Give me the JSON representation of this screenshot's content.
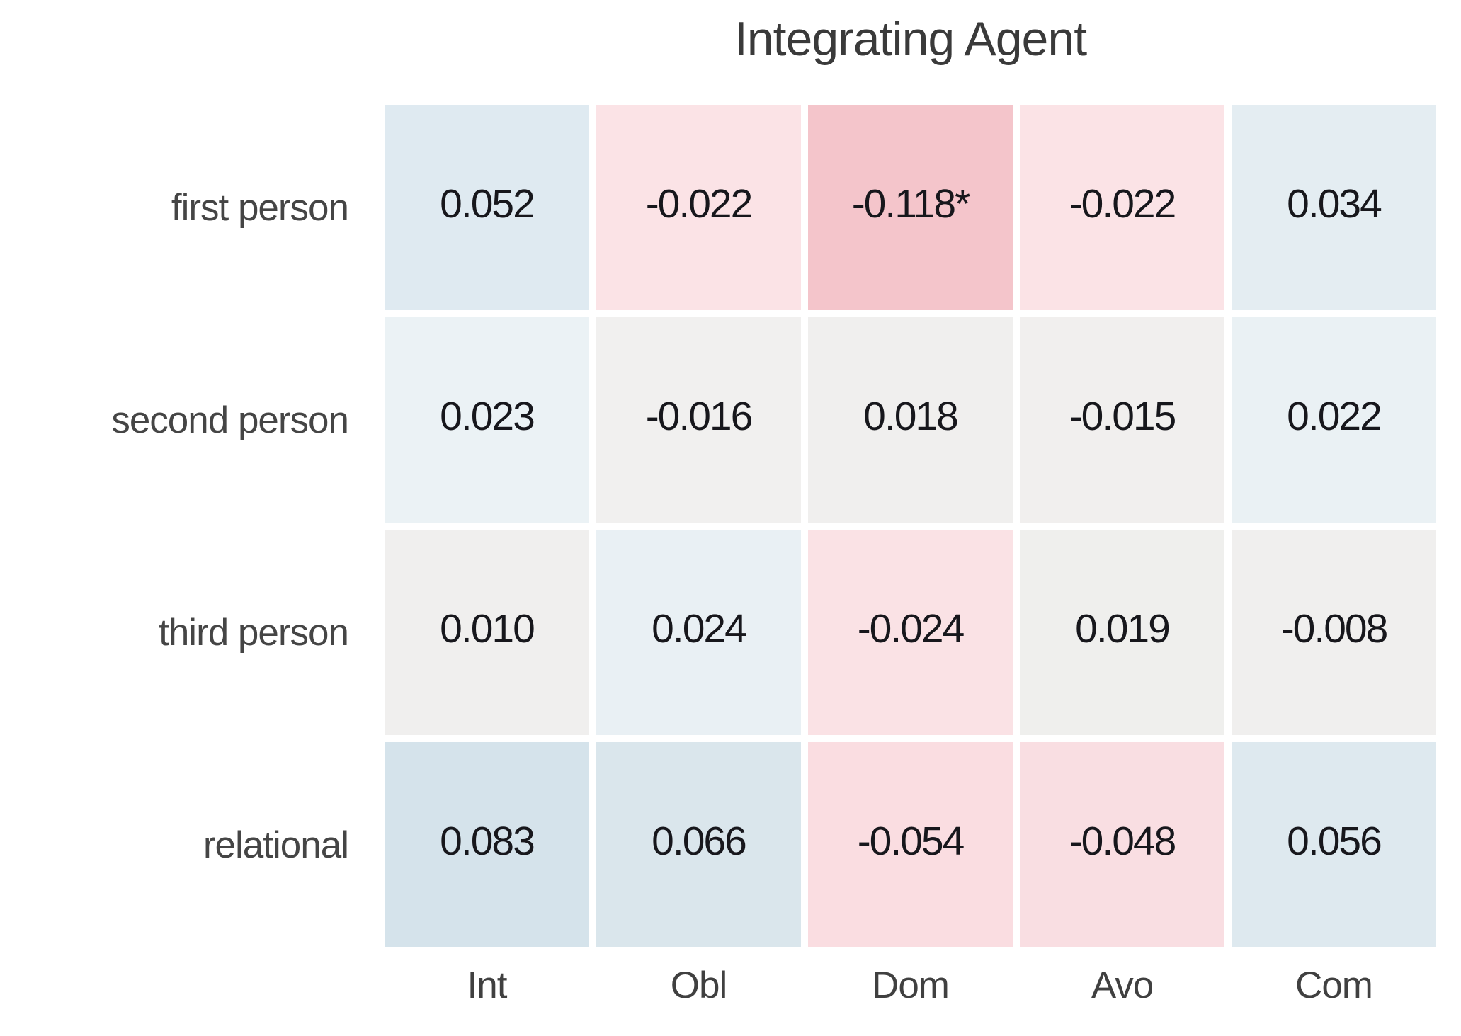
{
  "chart_data": {
    "type": "heatmap",
    "title": "Integrating Agent",
    "row_labels": [
      "first person",
      "second person",
      "third person",
      "relational"
    ],
    "col_labels": [
      "Int",
      "Obl",
      "Dom",
      "Avo",
      "Com"
    ],
    "cell_text": [
      [
        "0.052",
        "-0.022",
        "-0.118*",
        "-0.022",
        "0.034"
      ],
      [
        "0.023",
        "-0.016",
        "0.018",
        "-0.015",
        "0.022"
      ],
      [
        "0.010",
        "0.024",
        "-0.024",
        "0.019",
        "-0.008"
      ],
      [
        "0.083",
        "0.066",
        "-0.054",
        "-0.048",
        "0.056"
      ]
    ],
    "values": [
      [
        0.052,
        -0.022,
        -0.118,
        -0.022,
        0.034
      ],
      [
        0.023,
        -0.016,
        0.018,
        -0.015,
        0.022
      ],
      [
        0.01,
        0.024,
        -0.024,
        0.019,
        -0.008
      ],
      [
        0.083,
        0.066,
        -0.054,
        -0.048,
        0.056
      ]
    ],
    "cell_colors": [
      [
        "#dfeaf1",
        "#fbe3e6",
        "#f4c5cb",
        "#fbe3e6",
        "#e4edf2"
      ],
      [
        "#ebf2f5",
        "#f1f0ef",
        "#f0efee",
        "#f1efee",
        "#eaf1f4"
      ],
      [
        "#f0efee",
        "#e9f0f4",
        "#fae2e5",
        "#efefed",
        "#f0efee"
      ],
      [
        "#d5e3eb",
        "#dae6ec",
        "#fadde1",
        "#f9dee2",
        "#dee9ef"
      ]
    ],
    "palette": {
      "positive": "#d5e3eb",
      "near_zero": "#f0efee",
      "negative": "#f4c5cb"
    },
    "layout": {
      "legend": "none",
      "gridlines": "white gaps between cells",
      "annotation_color": "#17171c"
    }
  }
}
